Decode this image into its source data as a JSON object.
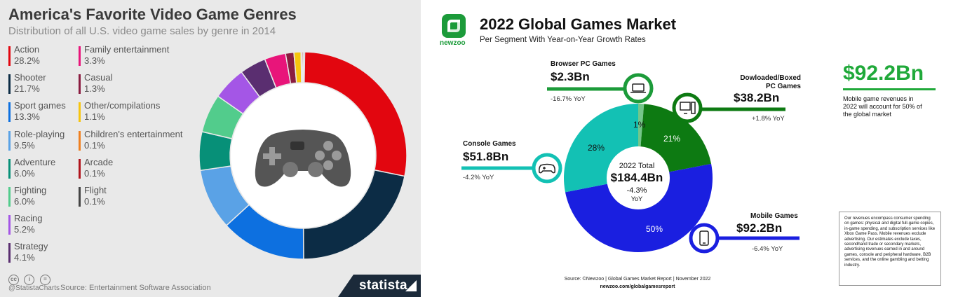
{
  "left_panel": {
    "title": "America's Favorite Video Game Genres",
    "subtitle": "Distribution of all U.S. video game sales by genre in 2014",
    "credit": "@StatistaCharts",
    "source": "Source: Entertainment Software Association",
    "brand": "statista",
    "cc_icons": [
      "cc",
      "i",
      "="
    ]
  },
  "chart_data": [
    {
      "type": "pie",
      "title": "America's Favorite Video Game Genres",
      "subtitle": "Distribution of all U.S. video game sales by genre in 2014",
      "legend_placement": "left",
      "slices": [
        {
          "name": "Action",
          "label": "28.2%",
          "value": 28.2,
          "color": "#e2060f"
        },
        {
          "name": "Shooter",
          "label": "21.7%",
          "value": 21.7,
          "color": "#0c2c45"
        },
        {
          "name": "Sport games",
          "label": "13.3%",
          "value": 13.3,
          "color": "#0d70e0"
        },
        {
          "name": "Role-playing",
          "label": "9.5%",
          "value": 9.5,
          "color": "#5aa2e6"
        },
        {
          "name": "Adventure",
          "label": "6.0%",
          "value": 6.0,
          "color": "#079078"
        },
        {
          "name": "Fighting",
          "label": "6.0%",
          "value": 6.0,
          "color": "#52cc8c"
        },
        {
          "name": "Racing",
          "label": "5.2%",
          "value": 5.2,
          "color": "#a456e6"
        },
        {
          "name": "Strategy",
          "label": "4.1%",
          "value": 4.1,
          "color": "#5a2e70"
        },
        {
          "name": "Family entertainment",
          "label": "3.3%",
          "value": 3.3,
          "color": "#e8157a"
        },
        {
          "name": "Casual",
          "label": "1.3%",
          "value": 1.3,
          "color": "#8a1c40"
        },
        {
          "name": "Other/compilations",
          "label": "1.1%",
          "value": 1.1,
          "color": "#f7c50e"
        },
        {
          "name": "Children's entertainment",
          "label": "0.1%",
          "value": 0.1,
          "color": "#f08020"
        },
        {
          "name": "Arcade",
          "label": "0.1%",
          "value": 0.1,
          "color": "#b0141c"
        },
        {
          "name": "Flight",
          "label": "0.1%",
          "value": 0.1,
          "color": "#444444"
        }
      ]
    },
    {
      "type": "pie",
      "title": "2022 Global Games Market",
      "subtitle": "Per Segment With Year-on-Year Growth Rates",
      "center": {
        "label": "2022 Total",
        "value": "$184.4Bn",
        "growth": "-4.3%",
        "growth_unit": "YoY"
      },
      "slices": [
        {
          "name": "Browser PC Games",
          "value_label": "$2.3Bn",
          "value": 2.3,
          "share": 1,
          "share_label": "1%",
          "yoy": "-16.7% YoY",
          "color": "#74c68a",
          "icon": "laptop-icon"
        },
        {
          "name": "Dowloaded/Boxed PC Games",
          "name_lines": [
            "Dowloaded/Boxed",
            "PC Games"
          ],
          "value_label": "$38.2Bn",
          "value": 38.2,
          "share": 21,
          "share_label": "21%",
          "yoy": "+1.8% YoY",
          "color": "#0d7a12",
          "icon": "desktop-pc-icon"
        },
        {
          "name": "Mobile Games",
          "value_label": "$92.2Bn",
          "value": 92.2,
          "share": 50,
          "share_label": "50%",
          "yoy": "-6.4% YoY",
          "color": "#1a1fe0",
          "icon": "smartphone-icon"
        },
        {
          "name": "Console Games",
          "value_label": "$51.8Bn",
          "value": 51.8,
          "share": 28,
          "share_label": "28%",
          "yoy": "-4.2% YoY",
          "color": "#13c1b4",
          "icon": "gamepad-icon"
        }
      ]
    }
  ],
  "right_panel": {
    "logo_text": "newzoo",
    "title": "2022 Global Games Market",
    "subtitle": "Per Segment With Year-on-Year Growth Rates",
    "highlight": {
      "value": "$92.2Bn",
      "description": "Mobile game revenues in 2022 will account for 50% of the global market"
    },
    "note": "Our revenues encompass consumer spending on games: physical and digital full-game copies, in-game spending, and subscription services like Xbox Game Pass. Mobile revenues exclude advertising. Our estimates exclude taxes, secondhand trade or secondary markets, advertising revenues earned in and around games, console and peripheral hardware, B2B services, and the online gambling and betting industry.",
    "source": "Source: ©Newzoo | Global Games Market Report | November 2022",
    "url": "newzoo.com/globalgamesreport",
    "colors": {
      "green_accent": "#20a93a",
      "dark_green": "#1c8a2a",
      "console_teal": "#13c1b4",
      "mobile_blue": "#1a1fe0"
    }
  }
}
